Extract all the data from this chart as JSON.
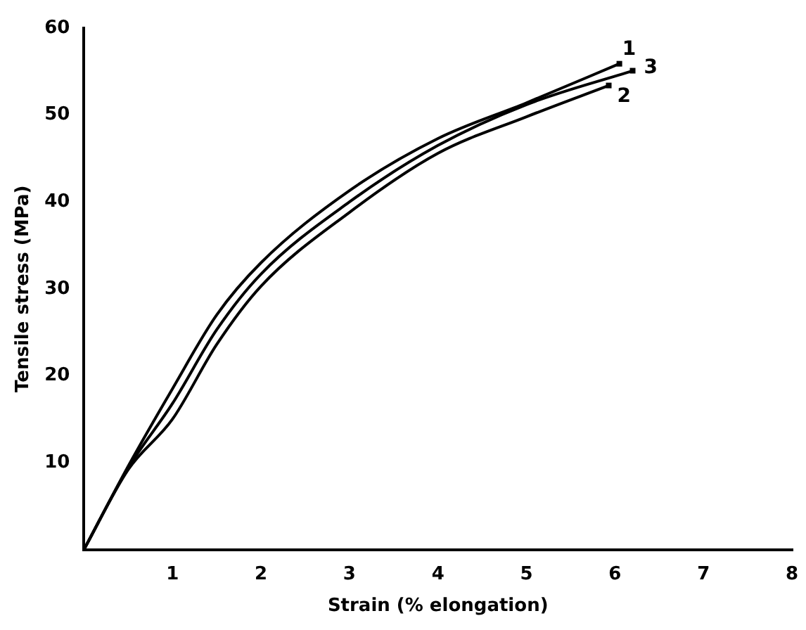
{
  "chart_data": {
    "type": "line",
    "xlabel": "Strain (% elongation)",
    "ylabel": "Tensile stress (MPa)",
    "xlim": [
      0,
      8
    ],
    "ylim": [
      0,
      60
    ],
    "xticks": [
      1,
      2,
      3,
      4,
      5,
      6,
      7,
      8
    ],
    "yticks": [
      10,
      20,
      30,
      40,
      50,
      60
    ],
    "grid": false,
    "legend": false,
    "marker": "none",
    "line_style": "solid",
    "series": [
      {
        "name": "1",
        "color": "#000000",
        "x": [
          0,
          0.5,
          1,
          1.5,
          2,
          3,
          4,
          5,
          6.05
        ],
        "values": [
          0,
          9.6,
          18.5,
          27,
          33,
          41.3,
          47.3,
          51.4,
          55.9
        ]
      },
      {
        "name": "2",
        "color": "#000000",
        "x": [
          0,
          0.5,
          1,
          1.5,
          2,
          3,
          4,
          5,
          5.93
        ],
        "values": [
          0,
          9.2,
          15,
          23.6,
          30.3,
          38.8,
          45.6,
          49.8,
          53.4
        ]
      },
      {
        "name": "3",
        "color": "#000000",
        "x": [
          0,
          0.5,
          1,
          1.5,
          2,
          3,
          4,
          5,
          6.2
        ],
        "values": [
          0,
          9.4,
          16.8,
          25.3,
          31.7,
          40,
          46.5,
          51.2,
          55.1
        ]
      }
    ]
  }
}
